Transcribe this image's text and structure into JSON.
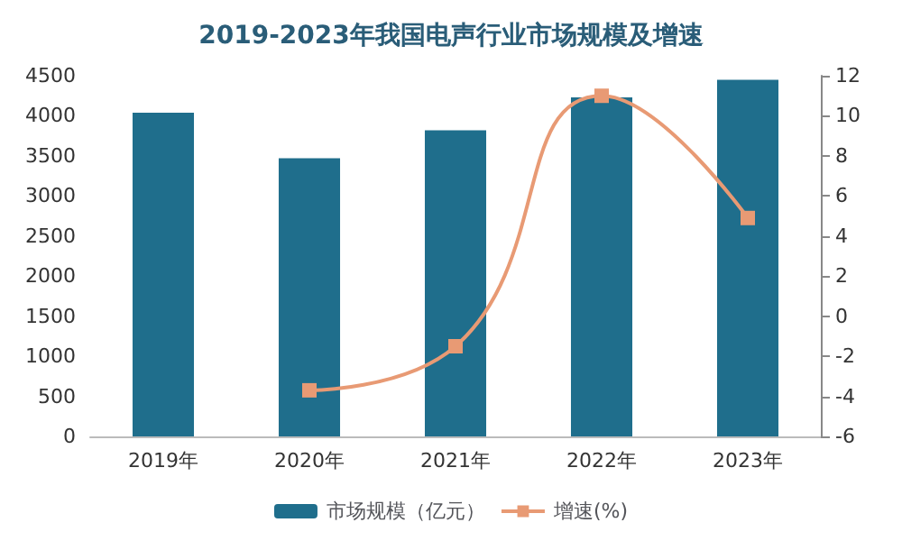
{
  "chart_data": {
    "type": "bar",
    "title": "2019-2023年我国电声行业市场规模及增速",
    "categories": [
      "2019年",
      "2020年",
      "2021年",
      "2022年",
      "2023年"
    ],
    "series": [
      {
        "name": "市场规模（亿元）",
        "color": "#1f6e8c",
        "values": [
          4040,
          3470,
          3820,
          4230,
          4450
        ]
      },
      {
        "name": "增速(%)",
        "type": "line",
        "axis": "y2",
        "color": "#e89a74",
        "values": [
          null,
          -3.7,
          -1.5,
          11.0,
          4.9
        ]
      }
    ],
    "ylim": [
      0,
      4500
    ],
    "yticks": [
      0,
      500,
      1000,
      1500,
      2000,
      2500,
      3000,
      3500,
      4000,
      4500
    ],
    "y2lim": [
      -6,
      12
    ],
    "y2ticks": [
      -6,
      -4,
      -2,
      0,
      2,
      4,
      6,
      8,
      10,
      12
    ],
    "legend": "bottom",
    "marker": "square",
    "line_style": "solid"
  }
}
